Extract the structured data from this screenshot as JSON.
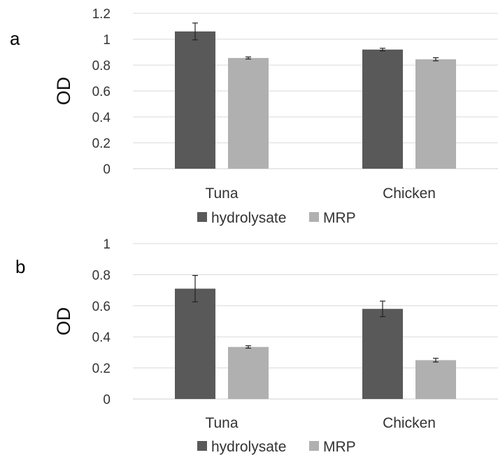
{
  "chart_data": [
    {
      "panel": "a",
      "type": "bar",
      "categories": [
        "Tuna",
        "Chicken"
      ],
      "series": [
        {
          "name": "hydrolysate",
          "values": [
            1.06,
            0.92
          ],
          "errors": [
            0.065,
            0.01
          ],
          "color": "#595959"
        },
        {
          "name": "MRP",
          "values": [
            0.855,
            0.845
          ],
          "errors": [
            0.008,
            0.012
          ],
          "color": "#b0b0b0"
        }
      ],
      "ylabel": "OD",
      "xlabel": "",
      "ylim": [
        0,
        1.2
      ],
      "yticks": [
        "0",
        "0.2",
        "0.4",
        "0.6",
        "0.8",
        "1",
        "1.2"
      ],
      "grid": true,
      "legend_position": "bottom"
    },
    {
      "panel": "b",
      "type": "bar",
      "categories": [
        "Tuna",
        "Chicken"
      ],
      "series": [
        {
          "name": "hydrolysate",
          "values": [
            0.71,
            0.58
          ],
          "errors": [
            0.085,
            0.05
          ],
          "color": "#595959"
        },
        {
          "name": "MRP",
          "values": [
            0.335,
            0.25
          ],
          "errors": [
            0.008,
            0.012
          ],
          "color": "#b0b0b0"
        }
      ],
      "ylabel": "OD",
      "xlabel": "",
      "ylim": [
        0,
        1
      ],
      "yticks": [
        "0",
        "0.2",
        "0.4",
        "0.6",
        "0.8",
        "1"
      ],
      "grid": true,
      "legend_position": "bottom"
    }
  ]
}
